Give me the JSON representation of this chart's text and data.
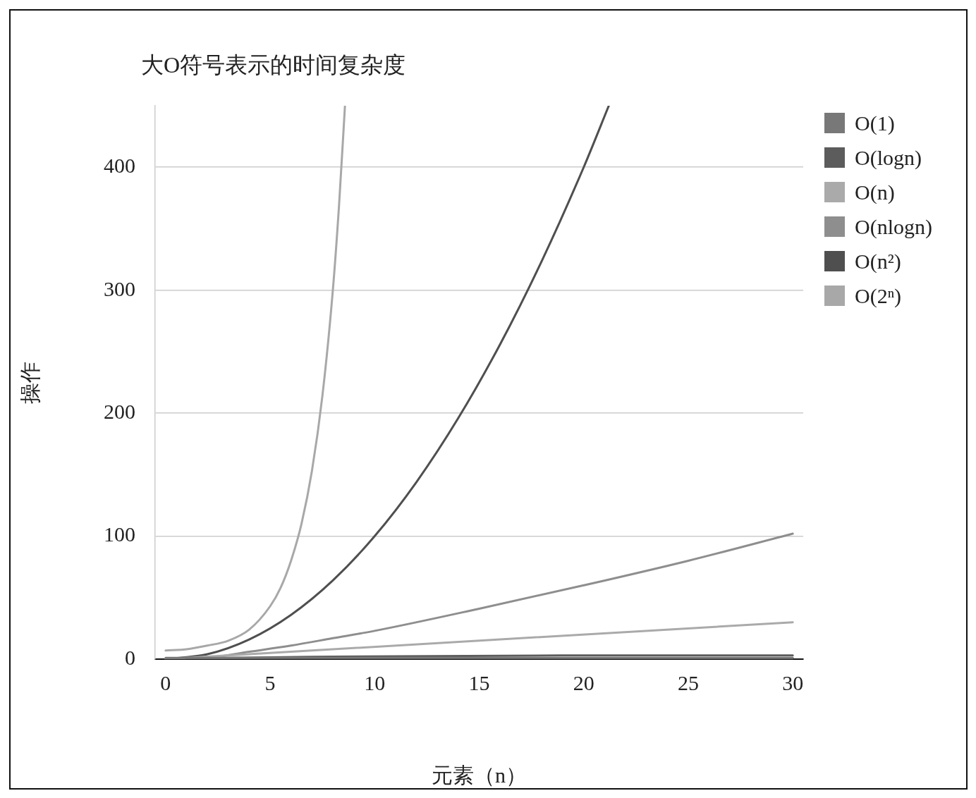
{
  "chart_data": {
    "type": "line",
    "title": "大O符号表示的时间复杂度",
    "xlabel": "元素（n）",
    "ylabel": "操作",
    "xlim": [
      -0.5,
      30.5
    ],
    "xticks": [
      0,
      5,
      10,
      15,
      20,
      25,
      30
    ],
    "ylim": [
      0,
      450
    ],
    "yticks": [
      0,
      100,
      200,
      300,
      400
    ],
    "grid": "y",
    "legend": "right",
    "line_style": "solid",
    "series": [
      {
        "name": "O(1)",
        "color": "#787878",
        "x": [
          0,
          30
        ],
        "values": [
          1,
          1
        ]
      },
      {
        "name": "O(logn)",
        "color": "#5c5c5c",
        "x": [
          1,
          3,
          8,
          20,
          30
        ],
        "values": [
          0,
          1,
          2,
          3,
          3
        ]
      },
      {
        "name": "O(n)",
        "color": "#aaaaaa",
        "x": [
          0,
          30
        ],
        "values": [
          0,
          30
        ]
      },
      {
        "name": "O(nlogn)",
        "color": "#8e8e8e",
        "x": [
          0,
          2,
          4,
          6,
          8,
          10,
          15,
          20,
          25,
          30
        ],
        "values": [
          0,
          1,
          6,
          11,
          17,
          23,
          41,
          60,
          80,
          102
        ]
      },
      {
        "name": "O(n²)",
        "color": "#4f4f4f",
        "x": [
          0,
          2,
          4,
          6,
          8,
          10,
          12,
          14,
          16,
          18,
          20,
          21.2
        ],
        "values": [
          0,
          4,
          16,
          36,
          64,
          100,
          144,
          196,
          256,
          324,
          400,
          450
        ]
      },
      {
        "name": "O(2ⁿ)",
        "color": "#a8a8a8",
        "x": [
          0,
          1,
          2,
          3,
          4,
          5,
          5.5,
          6,
          6.5,
          7,
          7.5,
          8,
          8.3,
          8.58
        ],
        "values": [
          7,
          8,
          11,
          15,
          24,
          43,
          58,
          80,
          110,
          153,
          214,
          300,
          370,
          450
        ]
      }
    ]
  }
}
